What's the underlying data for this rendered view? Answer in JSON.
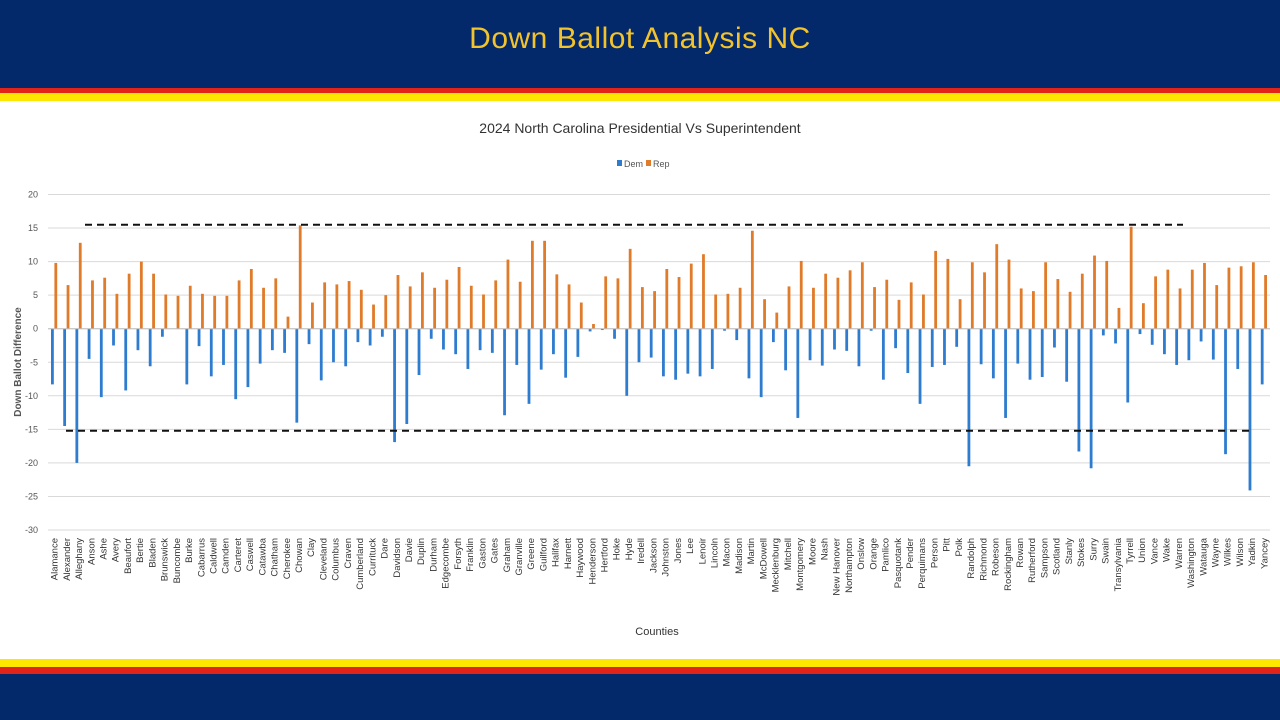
{
  "slide": {
    "title": "Down Ballot Analysis NC",
    "colors": {
      "navy": "#03296a",
      "gold": "#f3c32c",
      "red": "#e2231a",
      "yellow": "#ffe600"
    }
  },
  "chart_data": {
    "type": "bar",
    "title": "2024 North Carolina Presidential Vs Superintendent",
    "xlabel": "Counties",
    "ylabel": "Down Ballot Difference",
    "ylim": [
      -30,
      20
    ],
    "yticks": [
      -30,
      -25,
      -20,
      -15,
      -10,
      -5,
      0,
      5,
      10,
      15,
      20
    ],
    "grid": true,
    "legend_position": "top-center",
    "reference_lines": [
      {
        "y": 15.5,
        "style": "dashed",
        "label": ""
      },
      {
        "y": -15.2,
        "style": "dashed",
        "label": ""
      }
    ],
    "categories": [
      "Alamance",
      "Alexander",
      "Alleghany",
      "Anson",
      "Ashe",
      "Avery",
      "Beaufort",
      "Bertie",
      "Bladen",
      "Brunswick",
      "Buncombe",
      "Burke",
      "Cabarrus",
      "Caldwell",
      "Camden",
      "Carteret",
      "Caswell",
      "Catawba",
      "Chatham",
      "Cherokee",
      "Chowan",
      "Clay",
      "Cleveland",
      "Columbus",
      "Craven",
      "Cumberland",
      "Currituck",
      "Dare",
      "Davidson",
      "Davie",
      "Duplin",
      "Durham",
      "Edgecombe",
      "Forsyth",
      "Franklin",
      "Gaston",
      "Gates",
      "Graham",
      "Granville",
      "Greene",
      "Guilford",
      "Halifax",
      "Harnett",
      "Haywood",
      "Henderson",
      "Hertford",
      "Hoke",
      "Hyde",
      "Iredell",
      "Jackson",
      "Johnston",
      "Jones",
      "Lee",
      "Lenoir",
      "Lincoln",
      "Macon",
      "Madison",
      "Martin",
      "McDowell",
      "Mecklenburg",
      "Mitchell",
      "Montgomery",
      "Moore",
      "Nash",
      "New Hanover",
      "Northampton",
      "Onslow",
      "Orange",
      "Pamlico",
      "Pasquotank",
      "Pender",
      "Perquimans",
      "Person",
      "Pitt",
      "Polk",
      "Randolph",
      "Richmond",
      "Robeson",
      "Rockingham",
      "Rowan",
      "Rutherford",
      "Sampson",
      "Scotland",
      "Stanly",
      "Stokes",
      "Surry",
      "Swain",
      "Transylvania",
      "Tyrrell",
      "Union",
      "Vance",
      "Wake",
      "Warren",
      "Washington",
      "Watauga",
      "Wayne",
      "Wilkes",
      "Wilson",
      "Yadkin",
      "Yancey"
    ],
    "series": [
      {
        "name": "Dem",
        "color": "#2e7ccf",
        "values": [
          -8.3,
          -14.5,
          -20,
          -4.5,
          -10.2,
          -2.5,
          -9.2,
          -3.2,
          -5.6,
          -1.2,
          0,
          -8.3,
          -2.6,
          -7.1,
          -5.4,
          -10.5,
          -8.7,
          -5.2,
          -3.2,
          -3.6,
          -14,
          -2.3,
          -7.7,
          -5,
          -5.6,
          -2,
          -2.5,
          -1.2,
          -16.9,
          -14.2,
          -6.9,
          -1.5,
          -3.1,
          -3.8,
          -6,
          -3.2,
          -3.6,
          -12.9,
          -5.4,
          -11.2,
          -6.1,
          -3.8,
          -7.3,
          -4.2,
          -0.4,
          -0.2,
          -1.5,
          -10,
          -5,
          -4.3,
          -7.1,
          -7.6,
          -6.7,
          -7.1,
          -6,
          -0.3,
          -1.7,
          -7.4,
          -10.2,
          -2,
          -6.2,
          -13.3,
          -4.7,
          -5.5,
          -3.1,
          -3.3,
          -5.6,
          -0.3,
          -7.6,
          -2.9,
          -6.6,
          -11.2,
          -5.7,
          -5.4,
          -2.7,
          -20.5,
          -5.3,
          -7.4,
          -13.3,
          -5.2,
          -7.6,
          -7.2,
          -2.8,
          -7.9,
          -18.3,
          -20.8,
          -1,
          -2.2,
          -11,
          -0.8,
          -2.4,
          -3.8,
          -5.4,
          -4.7,
          -1.9,
          -4.6,
          -18.7,
          -6,
          -24.1,
          -8.3
        ]
      },
      {
        "name": "Rep",
        "color": "#e07b2a",
        "values": [
          9.8,
          6.5,
          12.8,
          7.2,
          7.6,
          5.2,
          8.2,
          10,
          8.2,
          5.1,
          4.9,
          6.4,
          5.2,
          4.9,
          4.9,
          7.2,
          8.9,
          6.1,
          7.5,
          1.8,
          15.4,
          3.9,
          6.9,
          6.6,
          7.1,
          5.8,
          3.6,
          5,
          8,
          6.3,
          8.4,
          6.1,
          7.3,
          9.2,
          6.4,
          5.1,
          7.2,
          10.3,
          7,
          13.1,
          13.1,
          8.1,
          6.6,
          3.9,
          0.7,
          7.8,
          7.5,
          11.9,
          6.2,
          5.6,
          8.9,
          7.7,
          9.7,
          11.1,
          5.1,
          5.2,
          6.1,
          14.6,
          4.4,
          2.4,
          6.3,
          10.1,
          6.1,
          8.2,
          7.6,
          8.7,
          9.9,
          6.2,
          7.3,
          4.3,
          6.9,
          5.1,
          11.6,
          10.4,
          4.4,
          9.9,
          8.4,
          12.6,
          10.3,
          6,
          5.6,
          9.9,
          7.4,
          5.5,
          8.2,
          10.9,
          10.1,
          3.1,
          15.2,
          3.8,
          7.8,
          8.8,
          6,
          8.8,
          9.8,
          6.5,
          9.1,
          9.3,
          9.9,
          8
        ]
      }
    ]
  }
}
